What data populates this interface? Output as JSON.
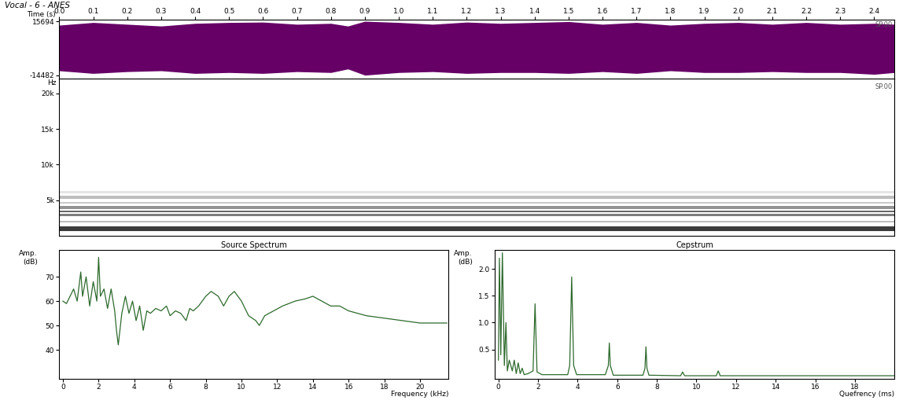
{
  "title": "Vocal - 6 - ANES",
  "chart_data": [
    {
      "type": "area",
      "xlabel": "Time (s)",
      "color": "#660066",
      "x": [
        0.0,
        0.1,
        0.2,
        0.3,
        0.4,
        0.5,
        0.6,
        0.7,
        0.8,
        0.85,
        0.9,
        1.0,
        1.1,
        1.2,
        1.3,
        1.4,
        1.5,
        1.6,
        1.7,
        1.8,
        1.9,
        2.0,
        2.1,
        2.2,
        2.3,
        2.4,
        2.46
      ],
      "values": [
        13500,
        15000,
        14000,
        13000,
        14500,
        15000,
        15200,
        14000,
        14500,
        13000,
        15694,
        15000,
        14000,
        15200,
        14500,
        15000,
        15500,
        14000,
        15000,
        13500,
        14500,
        15000,
        14000,
        15000,
        14000,
        14500,
        14000
      ],
      "lower": [
        -12000,
        -13500,
        -12500,
        -12000,
        -13500,
        -13000,
        -13500,
        -12500,
        -13000,
        -11000,
        -14482,
        -13000,
        -12500,
        -13500,
        -13000,
        -13000,
        -13500,
        -12500,
        -13500,
        -12000,
        -13000,
        -13000,
        -12500,
        -13000,
        -13000,
        -14000,
        -13000
      ],
      "xlim": [
        0,
        2.46
      ],
      "ylim": [
        -16500,
        16500
      ],
      "xticks": [
        0.0,
        0.1,
        0.2,
        0.3,
        0.4,
        0.5,
        0.6,
        0.7,
        0.8,
        0.9,
        1.0,
        1.1,
        1.2,
        1.3,
        1.4,
        1.5,
        1.6,
        1.7,
        1.8,
        1.9,
        2.0,
        2.1,
        2.2,
        2.3,
        2.4
      ],
      "yticks": [
        -14482,
        15694
      ],
      "annotations": [
        "SP.00"
      ]
    },
    {
      "type": "spectrogram",
      "ylabel": "Hz",
      "color": "#000000",
      "xlim": [
        0,
        2.46
      ],
      "ylim": [
        0,
        22050
      ],
      "yticks": [
        {
          "value": 5000,
          "label": "5k"
        },
        {
          "value": 10000,
          "label": "10k"
        },
        {
          "value": 15000,
          "label": "15k"
        },
        {
          "value": 20000,
          "label": "20k"
        }
      ],
      "tick_labels": "y",
      "bands": [
        {
          "low": 700,
          "high": 1300,
          "level": 0.9
        },
        {
          "low": 1900,
          "high": 2100,
          "level": 0.3
        },
        {
          "low": 2800,
          "high": 3100,
          "level": 0.6
        },
        {
          "low": 3300,
          "high": 3600,
          "level": 0.7
        },
        {
          "low": 3800,
          "high": 4200,
          "level": 0.5
        },
        {
          "low": 4500,
          "high": 4800,
          "level": 0.25
        },
        {
          "low": 5200,
          "high": 5600,
          "level": 0.3
        },
        {
          "low": 6000,
          "high": 6300,
          "level": 0.12
        }
      ],
      "annotations": [
        "SP.00"
      ]
    },
    {
      "type": "line",
      "title": "Source Spectrum",
      "ylabel": "Amp.\n(dB)",
      "xlabel": "Frequency (kHz)",
      "color": "#2d6a2d",
      "x": [
        0,
        0.2,
        0.4,
        0.6,
        0.8,
        1.0,
        1.1,
        1.3,
        1.5,
        1.7,
        1.9,
        2.0,
        2.1,
        2.3,
        2.5,
        2.7,
        2.9,
        3.0,
        3.1,
        3.3,
        3.5,
        3.7,
        3.9,
        4.1,
        4.3,
        4.5,
        4.7,
        4.9,
        5.2,
        5.5,
        5.8,
        6.0,
        6.3,
        6.6,
        6.9,
        7.1,
        7.3,
        7.6,
        8.0,
        8.3,
        8.7,
        9.0,
        9.3,
        9.6,
        10.0,
        10.4,
        10.8,
        11.0,
        11.3,
        11.8,
        12.3,
        13.0,
        13.6,
        14.0,
        14.5,
        15.0,
        15.5,
        16.0,
        17.0,
        18.0,
        19.0,
        20.0,
        21.0,
        21.5
      ],
      "values": [
        60,
        59,
        62,
        65,
        60,
        72,
        62,
        70,
        58,
        68,
        60,
        78,
        62,
        65,
        57,
        65,
        56,
        48,
        42,
        55,
        62,
        55,
        60,
        52,
        58,
        48,
        56,
        55,
        57,
        56,
        58,
        54,
        56,
        55,
        52,
        57,
        56,
        58,
        62,
        64,
        62,
        58,
        62,
        64,
        60,
        54,
        52,
        50,
        54,
        56,
        58,
        60,
        61,
        62,
        60,
        58,
        58,
        56,
        54,
        53,
        52,
        51,
        51,
        51
      ],
      "xlim": [
        -0.2,
        21.6
      ],
      "ylim": [
        28,
        81
      ],
      "xticks": [
        0,
        2,
        4,
        6,
        8,
        10,
        12,
        14,
        16,
        18,
        20
      ],
      "yticks": [
        40,
        50,
        60,
        70
      ]
    },
    {
      "type": "line",
      "title": "Cepstrum",
      "ylabel": "Amp.\n(dB)",
      "xlabel": "Quefrency (ms)",
      "color": "#2d6a2d",
      "x": [
        0.0,
        0.05,
        0.12,
        0.2,
        0.3,
        0.38,
        0.45,
        0.55,
        0.7,
        0.8,
        0.9,
        1.0,
        1.1,
        1.2,
        1.3,
        1.5,
        1.75,
        1.85,
        1.95,
        2.2,
        3.5,
        3.6,
        3.7,
        3.8,
        3.95,
        5.4,
        5.55,
        5.6,
        5.65,
        5.8,
        7.3,
        7.4,
        7.45,
        7.5,
        7.6,
        9.2,
        9.3,
        9.4,
        11.0,
        11.1,
        11.2,
        20.0
      ],
      "values": [
        0.3,
        2.2,
        0.4,
        2.3,
        0.2,
        1.0,
        0.1,
        0.3,
        0.1,
        0.3,
        0.05,
        0.25,
        0.05,
        0.15,
        0.03,
        0.05,
        0.1,
        1.35,
        0.08,
        0.03,
        0.03,
        0.2,
        1.85,
        0.2,
        0.03,
        0.03,
        0.2,
        0.62,
        0.2,
        0.02,
        0.02,
        0.15,
        0.55,
        0.15,
        0.02,
        0.01,
        0.08,
        0.01,
        0.01,
        0.1,
        0.01,
        0.01
      ],
      "xlim": [
        -0.2,
        20
      ],
      "ylim": [
        -0.05,
        2.35
      ],
      "xticks": [
        0,
        2,
        4,
        6,
        8,
        10,
        12,
        14,
        16,
        18
      ],
      "yticks": [
        0.5,
        1.0,
        1.5,
        2.0
      ]
    }
  ]
}
